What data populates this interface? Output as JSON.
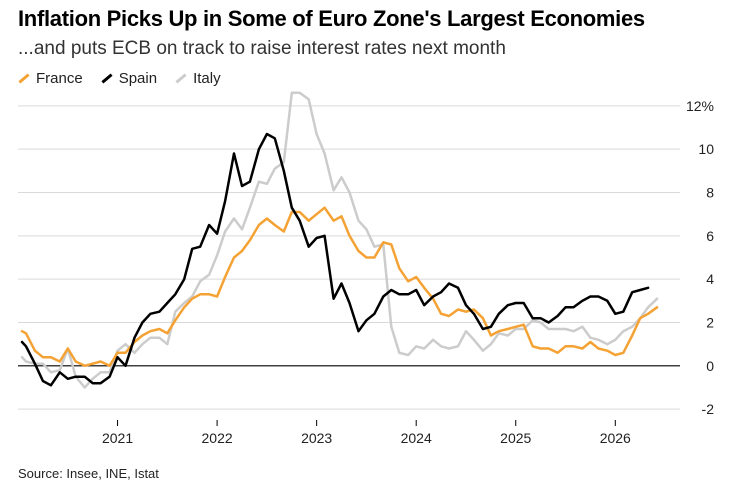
{
  "title": "Inflation Picks Up in Some of Euro Zone's Largest Economies",
  "subtitle": "...and puts ECB on track to raise interest rates next month",
  "source": "Source: Insee, INE, Istat",
  "chart_data": {
    "type": "line",
    "y_ticks": [
      "12%",
      "10",
      "8",
      "6",
      "4",
      "2",
      "0",
      "-2"
    ],
    "y_tick_values": [
      12,
      10,
      8,
      6,
      4,
      2,
      0,
      -2
    ],
    "ylim": [
      -2.5,
      12.5
    ],
    "x_ticks": [
      "2021",
      "2022",
      "2023",
      "2024",
      "2025",
      "2026"
    ],
    "x_tick_values": [
      2021,
      2022,
      2023,
      2024,
      2025,
      2026
    ],
    "xlim": [
      2020.0,
      2026.65
    ],
    "grid": true,
    "y_axis_side": "right",
    "legend_position": "top-left",
    "series": [
      {
        "name": "France",
        "color": "#f5a234",
        "width": 2.5,
        "points": [
          [
            2020.04,
            1.6
          ],
          [
            2020.08,
            1.5
          ],
          [
            2020.17,
            0.7
          ],
          [
            2020.25,
            0.4
          ],
          [
            2020.33,
            0.4
          ],
          [
            2020.42,
            0.2
          ],
          [
            2020.5,
            0.8
          ],
          [
            2020.58,
            0.2
          ],
          [
            2020.67,
            0.0
          ],
          [
            2020.75,
            0.1
          ],
          [
            2020.83,
            0.2
          ],
          [
            2020.92,
            0.0
          ],
          [
            2021.0,
            0.6
          ],
          [
            2021.08,
            0.6
          ],
          [
            2021.17,
            1.1
          ],
          [
            2021.25,
            1.4
          ],
          [
            2021.33,
            1.6
          ],
          [
            2021.42,
            1.7
          ],
          [
            2021.5,
            1.5
          ],
          [
            2021.58,
            2.1
          ],
          [
            2021.67,
            2.7
          ],
          [
            2021.75,
            3.1
          ],
          [
            2021.83,
            3.3
          ],
          [
            2021.92,
            3.3
          ],
          [
            2022.0,
            3.2
          ],
          [
            2022.08,
            4.1
          ],
          [
            2022.17,
            5.0
          ],
          [
            2022.25,
            5.3
          ],
          [
            2022.33,
            5.8
          ],
          [
            2022.42,
            6.5
          ],
          [
            2022.5,
            6.8
          ],
          [
            2022.58,
            6.5
          ],
          [
            2022.67,
            6.2
          ],
          [
            2022.75,
            7.1
          ],
          [
            2022.83,
            7.1
          ],
          [
            2022.92,
            6.7
          ],
          [
            2023.0,
            7.0
          ],
          [
            2023.08,
            7.3
          ],
          [
            2023.17,
            6.7
          ],
          [
            2023.25,
            6.9
          ],
          [
            2023.33,
            6.0
          ],
          [
            2023.42,
            5.3
          ],
          [
            2023.5,
            5.0
          ],
          [
            2023.58,
            5.0
          ],
          [
            2023.67,
            5.7
          ],
          [
            2023.75,
            5.6
          ],
          [
            2023.83,
            4.5
          ],
          [
            2023.92,
            3.9
          ],
          [
            2024.0,
            4.1
          ],
          [
            2024.08,
            3.6
          ],
          [
            2024.17,
            3.1
          ],
          [
            2024.25,
            2.4
          ],
          [
            2024.33,
            2.3
          ],
          [
            2024.42,
            2.6
          ],
          [
            2024.5,
            2.5
          ],
          [
            2024.58,
            2.6
          ],
          [
            2024.67,
            2.2
          ],
          [
            2024.75,
            1.4
          ],
          [
            2024.83,
            1.6
          ],
          [
            2024.92,
            1.7
          ],
          [
            2025.0,
            1.8
          ],
          [
            2025.08,
            1.9
          ],
          [
            2025.17,
            0.9
          ],
          [
            2025.25,
            0.8
          ],
          [
            2025.33,
            0.8
          ],
          [
            2025.42,
            0.6
          ],
          [
            2025.5,
            0.9
          ],
          [
            2025.58,
            0.9
          ],
          [
            2025.67,
            0.8
          ],
          [
            2025.75,
            1.1
          ],
          [
            2025.83,
            0.8
          ],
          [
            2025.92,
            0.7
          ],
          [
            2026.0,
            0.5
          ],
          [
            2026.08,
            0.6
          ],
          [
            2026.17,
            1.4
          ],
          [
            2026.25,
            2.2
          ],
          [
            2026.33,
            2.4
          ],
          [
            2026.42,
            2.7
          ]
        ]
      },
      {
        "name": "Spain",
        "color": "#000000",
        "width": 2.5,
        "points": [
          [
            2020.04,
            1.1
          ],
          [
            2020.08,
            0.9
          ],
          [
            2020.17,
            0.1
          ],
          [
            2020.25,
            -0.7
          ],
          [
            2020.33,
            -0.9
          ],
          [
            2020.42,
            -0.3
          ],
          [
            2020.5,
            -0.6
          ],
          [
            2020.58,
            -0.5
          ],
          [
            2020.67,
            -0.5
          ],
          [
            2020.75,
            -0.8
          ],
          [
            2020.83,
            -0.8
          ],
          [
            2020.92,
            -0.5
          ],
          [
            2021.0,
            0.4
          ],
          [
            2021.08,
            0.0
          ],
          [
            2021.17,
            1.3
          ],
          [
            2021.25,
            2.0
          ],
          [
            2021.33,
            2.4
          ],
          [
            2021.42,
            2.5
          ],
          [
            2021.5,
            2.9
          ],
          [
            2021.58,
            3.3
          ],
          [
            2021.67,
            4.0
          ],
          [
            2021.75,
            5.4
          ],
          [
            2021.83,
            5.5
          ],
          [
            2021.92,
            6.5
          ],
          [
            2022.0,
            6.1
          ],
          [
            2022.08,
            7.6
          ],
          [
            2022.17,
            9.8
          ],
          [
            2022.25,
            8.3
          ],
          [
            2022.33,
            8.5
          ],
          [
            2022.42,
            10.0
          ],
          [
            2022.5,
            10.7
          ],
          [
            2022.58,
            10.5
          ],
          [
            2022.67,
            9.0
          ],
          [
            2022.75,
            7.3
          ],
          [
            2022.83,
            6.7
          ],
          [
            2022.92,
            5.5
          ],
          [
            2023.0,
            5.9
          ],
          [
            2023.08,
            6.0
          ],
          [
            2023.17,
            3.1
          ],
          [
            2023.25,
            3.8
          ],
          [
            2023.33,
            2.9
          ],
          [
            2023.42,
            1.6
          ],
          [
            2023.5,
            2.1
          ],
          [
            2023.58,
            2.4
          ],
          [
            2023.67,
            3.2
          ],
          [
            2023.75,
            3.5
          ],
          [
            2023.83,
            3.3
          ],
          [
            2023.92,
            3.3
          ],
          [
            2024.0,
            3.5
          ],
          [
            2024.08,
            2.8
          ],
          [
            2024.17,
            3.2
          ],
          [
            2024.25,
            3.4
          ],
          [
            2024.33,
            3.8
          ],
          [
            2024.42,
            3.6
          ],
          [
            2024.5,
            2.8
          ],
          [
            2024.58,
            2.4
          ],
          [
            2024.67,
            1.7
          ],
          [
            2024.75,
            1.8
          ],
          [
            2024.83,
            2.4
          ],
          [
            2024.92,
            2.8
          ],
          [
            2025.0,
            2.9
          ],
          [
            2025.08,
            2.9
          ],
          [
            2025.17,
            2.2
          ],
          [
            2025.25,
            2.2
          ],
          [
            2025.33,
            2.0
          ],
          [
            2025.42,
            2.3
          ],
          [
            2025.5,
            2.7
          ],
          [
            2025.58,
            2.7
          ],
          [
            2025.67,
            3.0
          ],
          [
            2025.75,
            3.2
          ],
          [
            2025.83,
            3.2
          ],
          [
            2025.92,
            3.0
          ],
          [
            2026.0,
            2.4
          ],
          [
            2026.08,
            2.5
          ],
          [
            2026.17,
            3.4
          ],
          [
            2026.25,
            3.5
          ],
          [
            2026.33,
            3.6
          ]
        ]
      },
      {
        "name": "Italy",
        "color": "#cccccc",
        "width": 2.5,
        "points": [
          [
            2020.04,
            0.4
          ],
          [
            2020.08,
            0.2
          ],
          [
            2020.17,
            0.1
          ],
          [
            2020.25,
            0.1
          ],
          [
            2020.33,
            -0.3
          ],
          [
            2020.42,
            -0.2
          ],
          [
            2020.5,
            0.8
          ],
          [
            2020.58,
            -0.5
          ],
          [
            2020.67,
            -1.0
          ],
          [
            2020.75,
            -0.6
          ],
          [
            2020.83,
            -0.3
          ],
          [
            2020.92,
            -0.3
          ],
          [
            2021.0,
            0.7
          ],
          [
            2021.08,
            1.0
          ],
          [
            2021.17,
            0.6
          ],
          [
            2021.25,
            1.0
          ],
          [
            2021.33,
            1.3
          ],
          [
            2021.42,
            1.3
          ],
          [
            2021.5,
            1.0
          ],
          [
            2021.58,
            2.5
          ],
          [
            2021.67,
            2.9
          ],
          [
            2021.75,
            3.2
          ],
          [
            2021.83,
            3.9
          ],
          [
            2021.92,
            4.2
          ],
          [
            2022.0,
            5.1
          ],
          [
            2022.08,
            6.2
          ],
          [
            2022.17,
            6.8
          ],
          [
            2022.25,
            6.3
          ],
          [
            2022.33,
            7.3
          ],
          [
            2022.42,
            8.5
          ],
          [
            2022.5,
            8.4
          ],
          [
            2022.58,
            9.1
          ],
          [
            2022.67,
            9.4
          ],
          [
            2022.75,
            12.6
          ],
          [
            2022.83,
            12.6
          ],
          [
            2022.92,
            12.3
          ],
          [
            2023.0,
            10.7
          ],
          [
            2023.08,
            9.8
          ],
          [
            2023.17,
            8.1
          ],
          [
            2023.25,
            8.7
          ],
          [
            2023.33,
            8.0
          ],
          [
            2023.42,
            6.7
          ],
          [
            2023.5,
            6.3
          ],
          [
            2023.58,
            5.5
          ],
          [
            2023.67,
            5.6
          ],
          [
            2023.75,
            1.8
          ],
          [
            2023.83,
            0.6
          ],
          [
            2023.92,
            0.5
          ],
          [
            2024.0,
            0.9
          ],
          [
            2024.08,
            0.8
          ],
          [
            2024.17,
            1.2
          ],
          [
            2024.25,
            0.9
          ],
          [
            2024.33,
            0.8
          ],
          [
            2024.42,
            0.9
          ],
          [
            2024.5,
            1.6
          ],
          [
            2024.58,
            1.2
          ],
          [
            2024.67,
            0.7
          ],
          [
            2024.75,
            1.0
          ],
          [
            2024.83,
            1.5
          ],
          [
            2024.92,
            1.4
          ],
          [
            2025.0,
            1.7
          ],
          [
            2025.08,
            1.7
          ],
          [
            2025.17,
            2.1
          ],
          [
            2025.25,
            2.0
          ],
          [
            2025.33,
            1.7
          ],
          [
            2025.42,
            1.7
          ],
          [
            2025.5,
            1.7
          ],
          [
            2025.58,
            1.6
          ],
          [
            2025.67,
            1.8
          ],
          [
            2025.75,
            1.3
          ],
          [
            2025.83,
            1.2
          ],
          [
            2025.92,
            1.0
          ],
          [
            2026.0,
            1.2
          ],
          [
            2026.08,
            1.6
          ],
          [
            2026.17,
            1.8
          ],
          [
            2026.25,
            2.2
          ],
          [
            2026.33,
            2.7
          ],
          [
            2026.42,
            3.1
          ]
        ]
      }
    ]
  }
}
